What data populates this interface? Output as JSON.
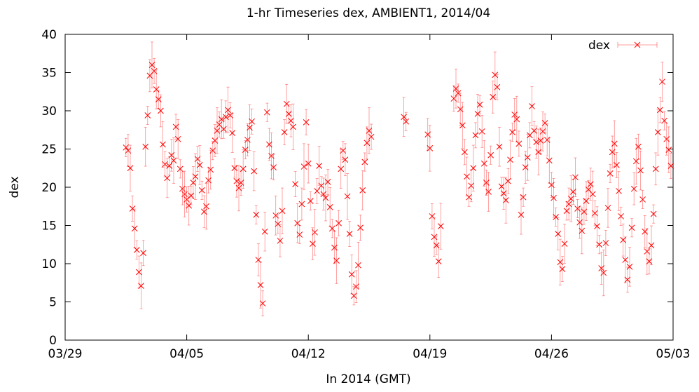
{
  "chart_data": {
    "type": "scatter",
    "title": "1-hr Timeseries dex, AMBIENT1, 2014/04",
    "xlabel": "In 2014 (GMT)",
    "ylabel": "dex",
    "x_ticks": [
      "03/29",
      "04/05",
      "04/12",
      "04/19",
      "04/26",
      "05/03"
    ],
    "x_tick_dates": [
      "2014-03-29",
      "2014-04-05",
      "2014-04-12",
      "2014-04-19",
      "2014-04-26",
      "2014-05-03"
    ],
    "xlim": [
      "2014-03-29",
      "2014-05-03"
    ],
    "ylim": [
      0,
      40
    ],
    "y_ticks": [
      0,
      5,
      10,
      15,
      20,
      25,
      30,
      35,
      40
    ],
    "grid": false,
    "legend_position": "top-right",
    "series_color": "#ff0000",
    "series": [
      {
        "name": "dex",
        "points": [
          [
            "2014-04-01T12:00",
            25.2
          ],
          [
            "2014-04-01T15:00",
            24.8
          ],
          [
            "2014-04-01T18:00",
            22.5
          ],
          [
            "2014-04-01T21:00",
            17.2
          ],
          [
            "2014-04-02T00:00",
            14.6
          ],
          [
            "2014-04-02T03:00",
            11.8
          ],
          [
            "2014-04-02T06:00",
            8.9
          ],
          [
            "2014-04-02T09:00",
            7.1
          ],
          [
            "2014-04-02T12:00",
            11.4
          ],
          [
            "2014-04-02T15:00",
            25.3
          ],
          [
            "2014-04-02T18:00",
            29.4
          ],
          [
            "2014-04-02T21:00",
            34.6
          ],
          [
            "2014-04-03T00:00",
            36.0
          ],
          [
            "2014-04-03T03:00",
            35.2
          ],
          [
            "2014-04-03T06:00",
            32.8
          ],
          [
            "2014-04-03T09:00",
            31.5
          ],
          [
            "2014-04-03T12:00",
            30.0
          ],
          [
            "2014-04-03T15:00",
            25.6
          ],
          [
            "2014-04-03T18:00",
            23.0
          ],
          [
            "2014-04-03T21:00",
            21.2
          ],
          [
            "2014-04-04T00:00",
            22.8
          ],
          [
            "2014-04-04T03:00",
            24.2
          ],
          [
            "2014-04-04T06:00",
            23.5
          ],
          [
            "2014-04-04T09:00",
            27.9
          ],
          [
            "2014-04-04T12:00",
            26.3
          ],
          [
            "2014-04-04T15:00",
            22.4
          ],
          [
            "2014-04-04T18:00",
            19.8
          ],
          [
            "2014-04-04T21:00",
            19.1
          ],
          [
            "2014-04-05T00:00",
            18.4
          ],
          [
            "2014-04-05T03:00",
            17.6
          ],
          [
            "2014-04-05T06:00",
            18.9
          ],
          [
            "2014-04-05T09:00",
            20.6
          ],
          [
            "2014-04-05T12:00",
            21.4
          ],
          [
            "2014-04-05T15:00",
            23.7
          ],
          [
            "2014-04-05T18:00",
            22.9
          ],
          [
            "2014-04-05T21:00",
            19.6
          ],
          [
            "2014-04-06T00:00",
            16.8
          ],
          [
            "2014-04-06T03:00",
            17.5
          ],
          [
            "2014-04-06T06:00",
            20.9
          ],
          [
            "2014-04-06T09:00",
            22.3
          ],
          [
            "2014-04-06T12:00",
            24.8
          ],
          [
            "2014-04-06T15:00",
            26.1
          ],
          [
            "2014-04-06T18:00",
            27.4
          ],
          [
            "2014-04-06T21:00",
            28.2
          ],
          [
            "2014-04-07T00:00",
            28.9
          ],
          [
            "2014-04-07T03:00",
            27.6
          ],
          [
            "2014-04-07T06:00",
            29.2
          ],
          [
            "2014-04-07T09:00",
            30.1
          ],
          [
            "2014-04-07T12:00",
            29.4
          ],
          [
            "2014-04-07T15:00",
            27.1
          ],
          [
            "2014-04-07T18:00",
            22.5
          ],
          [
            "2014-04-07T21:00",
            20.8
          ],
          [
            "2014-04-08T00:00",
            19.9
          ],
          [
            "2014-04-08T03:00",
            20.6
          ],
          [
            "2014-04-08T06:00",
            22.4
          ],
          [
            "2014-04-08T09:00",
            24.9
          ],
          [
            "2014-04-08T12:00",
            26.2
          ],
          [
            "2014-04-08T15:00",
            27.8
          ],
          [
            "2014-04-08T18:00",
            28.6
          ],
          [
            "2014-04-08T21:00",
            22.1
          ],
          [
            "2014-04-09T00:00",
            16.4
          ],
          [
            "2014-04-09T03:00",
            10.5
          ],
          [
            "2014-04-09T06:00",
            7.2
          ],
          [
            "2014-04-09T09:00",
            4.8
          ],
          [
            "2014-04-09T12:00",
            14.2
          ],
          [
            "2014-04-09T15:00",
            29.8
          ],
          [
            "2014-04-09T18:00",
            25.6
          ],
          [
            "2014-04-09T21:00",
            24.1
          ],
          [
            "2014-04-10T00:00",
            22.6
          ],
          [
            "2014-04-10T03:00",
            16.3
          ],
          [
            "2014-04-10T06:00",
            15.2
          ],
          [
            "2014-04-10T09:00",
            13.0
          ],
          [
            "2014-04-10T12:00",
            16.9
          ],
          [
            "2014-04-10T15:00",
            27.2
          ],
          [
            "2014-04-10T18:00",
            30.9
          ],
          [
            "2014-04-10T21:00",
            29.6
          ],
          [
            "2014-04-11T00:00",
            28.7
          ],
          [
            "2014-04-11T03:00",
            27.9
          ],
          [
            "2014-04-11T06:00",
            20.4
          ],
          [
            "2014-04-11T09:00",
            15.3
          ],
          [
            "2014-04-11T12:00",
            13.8
          ],
          [
            "2014-04-11T15:00",
            17.8
          ],
          [
            "2014-04-11T18:00",
            22.7
          ],
          [
            "2014-04-11T21:00",
            28.5
          ],
          [
            "2014-04-12T00:00",
            23.1
          ],
          [
            "2014-04-12T03:00",
            18.2
          ],
          [
            "2014-04-12T06:00",
            12.6
          ],
          [
            "2014-04-12T09:00",
            14.1
          ],
          [
            "2014-04-12T12:00",
            19.5
          ],
          [
            "2014-04-12T15:00",
            22.8
          ],
          [
            "2014-04-12T18:00",
            20.2
          ],
          [
            "2014-04-12T21:00",
            19.1
          ],
          [
            "2014-04-13T00:00",
            18.6
          ],
          [
            "2014-04-13T03:00",
            20.7
          ],
          [
            "2014-04-13T06:00",
            17.4
          ],
          [
            "2014-04-13T09:00",
            14.6
          ],
          [
            "2014-04-13T12:00",
            12.1
          ],
          [
            "2014-04-13T15:00",
            10.4
          ],
          [
            "2014-04-13T18:00",
            15.3
          ],
          [
            "2014-04-13T21:00",
            22.4
          ],
          [
            "2014-04-14T00:00",
            24.8
          ],
          [
            "2014-04-14T03:00",
            23.6
          ],
          [
            "2014-04-14T06:00",
            18.8
          ],
          [
            "2014-04-14T09:00",
            13.9
          ],
          [
            "2014-04-14T12:00",
            8.6
          ],
          [
            "2014-04-14T15:00",
            5.8
          ],
          [
            "2014-04-14T18:00",
            7.0
          ],
          [
            "2014-04-14T21:00",
            9.8
          ],
          [
            "2014-04-15T00:00",
            14.7
          ],
          [
            "2014-04-15T03:00",
            19.6
          ],
          [
            "2014-04-15T06:00",
            23.3
          ],
          [
            "2014-04-15T09:00",
            25.8
          ],
          [
            "2014-04-15T12:00",
            27.4
          ],
          [
            "2014-04-15T15:00",
            26.6
          ],
          [
            "2014-04-17T12:00",
            29.2
          ],
          [
            "2014-04-17T15:00",
            28.6
          ],
          [
            "2014-04-18T21:00",
            26.9
          ],
          [
            "2014-04-19T00:00",
            25.1
          ],
          [
            "2014-04-19T03:00",
            16.2
          ],
          [
            "2014-04-19T06:00",
            13.5
          ],
          [
            "2014-04-19T09:00",
            12.4
          ],
          [
            "2014-04-19T12:00",
            10.3
          ],
          [
            "2014-04-19T15:00",
            14.9
          ],
          [
            "2014-04-20T09:00",
            31.6
          ],
          [
            "2014-04-20T12:00",
            32.9
          ],
          [
            "2014-04-20T15:00",
            32.3
          ],
          [
            "2014-04-20T18:00",
            30.2
          ],
          [
            "2014-04-20T21:00",
            28.1
          ],
          [
            "2014-04-21T00:00",
            24.6
          ],
          [
            "2014-04-21T03:00",
            21.4
          ],
          [
            "2014-04-21T06:00",
            18.7
          ],
          [
            "2014-04-21T09:00",
            20.2
          ],
          [
            "2014-04-21T12:00",
            22.5
          ],
          [
            "2014-04-21T15:00",
            26.8
          ],
          [
            "2014-04-21T18:00",
            29.6
          ],
          [
            "2014-04-21T21:00",
            30.8
          ],
          [
            "2014-04-22T00:00",
            27.3
          ],
          [
            "2014-04-22T03:00",
            23.1
          ],
          [
            "2014-04-22T06:00",
            20.6
          ],
          [
            "2014-04-22T09:00",
            19.4
          ],
          [
            "2014-04-22T12:00",
            24.2
          ],
          [
            "2014-04-22T15:00",
            31.8
          ],
          [
            "2014-04-22T18:00",
            34.7
          ],
          [
            "2014-04-22T21:00",
            33.1
          ],
          [
            "2014-04-23T00:00",
            25.3
          ],
          [
            "2014-04-23T03:00",
            20.1
          ],
          [
            "2014-04-23T06:00",
            19.2
          ],
          [
            "2014-04-23T09:00",
            18.3
          ],
          [
            "2014-04-23T12:00",
            20.8
          ],
          [
            "2014-04-23T15:00",
            23.6
          ],
          [
            "2014-04-23T18:00",
            27.2
          ],
          [
            "2014-04-23T21:00",
            29.5
          ],
          [
            "2014-04-24T00:00",
            28.9
          ],
          [
            "2014-04-24T03:00",
            25.7
          ],
          [
            "2014-04-24T06:00",
            16.4
          ],
          [
            "2014-04-24T09:00",
            18.7
          ],
          [
            "2014-04-24T12:00",
            22.6
          ],
          [
            "2014-04-24T15:00",
            23.9
          ],
          [
            "2014-04-24T18:00",
            26.8
          ],
          [
            "2014-04-24T21:00",
            30.6
          ],
          [
            "2014-04-25T00:00",
            27.4
          ],
          [
            "2014-04-25T03:00",
            25.9
          ],
          [
            "2014-04-25T06:00",
            24.6
          ],
          [
            "2014-04-25T09:00",
            26.1
          ],
          [
            "2014-04-25T12:00",
            27.3
          ],
          [
            "2014-04-25T15:00",
            28.4
          ],
          [
            "2014-04-25T18:00",
            26.2
          ],
          [
            "2014-04-25T21:00",
            23.5
          ],
          [
            "2014-04-26T00:00",
            20.3
          ],
          [
            "2014-04-26T03:00",
            18.6
          ],
          [
            "2014-04-26T06:00",
            16.1
          ],
          [
            "2014-04-26T09:00",
            13.9
          ],
          [
            "2014-04-26T12:00",
            10.2
          ],
          [
            "2014-04-26T15:00",
            9.3
          ],
          [
            "2014-04-26T18:00",
            12.6
          ],
          [
            "2014-04-26T21:00",
            16.9
          ],
          [
            "2014-04-27T00:00",
            17.8
          ],
          [
            "2014-04-27T03:00",
            18.5
          ],
          [
            "2014-04-27T06:00",
            19.4
          ],
          [
            "2014-04-27T09:00",
            21.3
          ],
          [
            "2014-04-27T12:00",
            17.2
          ],
          [
            "2014-04-27T15:00",
            15.4
          ],
          [
            "2014-04-27T18:00",
            14.3
          ],
          [
            "2014-04-27T21:00",
            16.8
          ],
          [
            "2014-04-28T00:00",
            18.2
          ],
          [
            "2014-04-28T03:00",
            19.7
          ],
          [
            "2014-04-28T06:00",
            20.4
          ],
          [
            "2014-04-28T09:00",
            19.1
          ],
          [
            "2014-04-28T12:00",
            16.6
          ],
          [
            "2014-04-28T15:00",
            14.9
          ],
          [
            "2014-04-28T18:00",
            12.5
          ],
          [
            "2014-04-28T21:00",
            9.4
          ],
          [
            "2014-04-29T00:00",
            8.8
          ],
          [
            "2014-04-29T03:00",
            12.7
          ],
          [
            "2014-04-29T06:00",
            17.3
          ],
          [
            "2014-04-29T09:00",
            21.8
          ],
          [
            "2014-04-29T12:00",
            24.6
          ],
          [
            "2014-04-29T15:00",
            25.7
          ],
          [
            "2014-04-29T18:00",
            22.9
          ],
          [
            "2014-04-29T21:00",
            19.5
          ],
          [
            "2014-04-30T00:00",
            16.2
          ],
          [
            "2014-04-30T03:00",
            13.1
          ],
          [
            "2014-04-30T06:00",
            10.5
          ],
          [
            "2014-04-30T09:00",
            7.9
          ],
          [
            "2014-04-30T12:00",
            9.6
          ],
          [
            "2014-04-30T15:00",
            14.7
          ],
          [
            "2014-04-30T18:00",
            19.8
          ],
          [
            "2014-04-30T21:00",
            23.4
          ],
          [
            "2014-05-01T00:00",
            25.3
          ],
          [
            "2014-05-01T03:00",
            22.2
          ],
          [
            "2014-05-01T06:00",
            18.4
          ],
          [
            "2014-05-01T09:00",
            14.2
          ],
          [
            "2014-05-01T12:00",
            11.6
          ],
          [
            "2014-05-01T15:00",
            10.3
          ],
          [
            "2014-05-01T18:00",
            12.4
          ],
          [
            "2014-05-01T21:00",
            16.5
          ],
          [
            "2014-05-02T00:00",
            22.4
          ],
          [
            "2014-05-02T03:00",
            27.2
          ],
          [
            "2014-05-02T06:00",
            30.1
          ],
          [
            "2014-05-02T09:00",
            33.8
          ],
          [
            "2014-05-02T12:00",
            28.7
          ],
          [
            "2014-05-02T15:00",
            26.3
          ],
          [
            "2014-05-02T18:00",
            24.9
          ],
          [
            "2014-05-02T21:00",
            22.8
          ]
        ]
      }
    ]
  }
}
